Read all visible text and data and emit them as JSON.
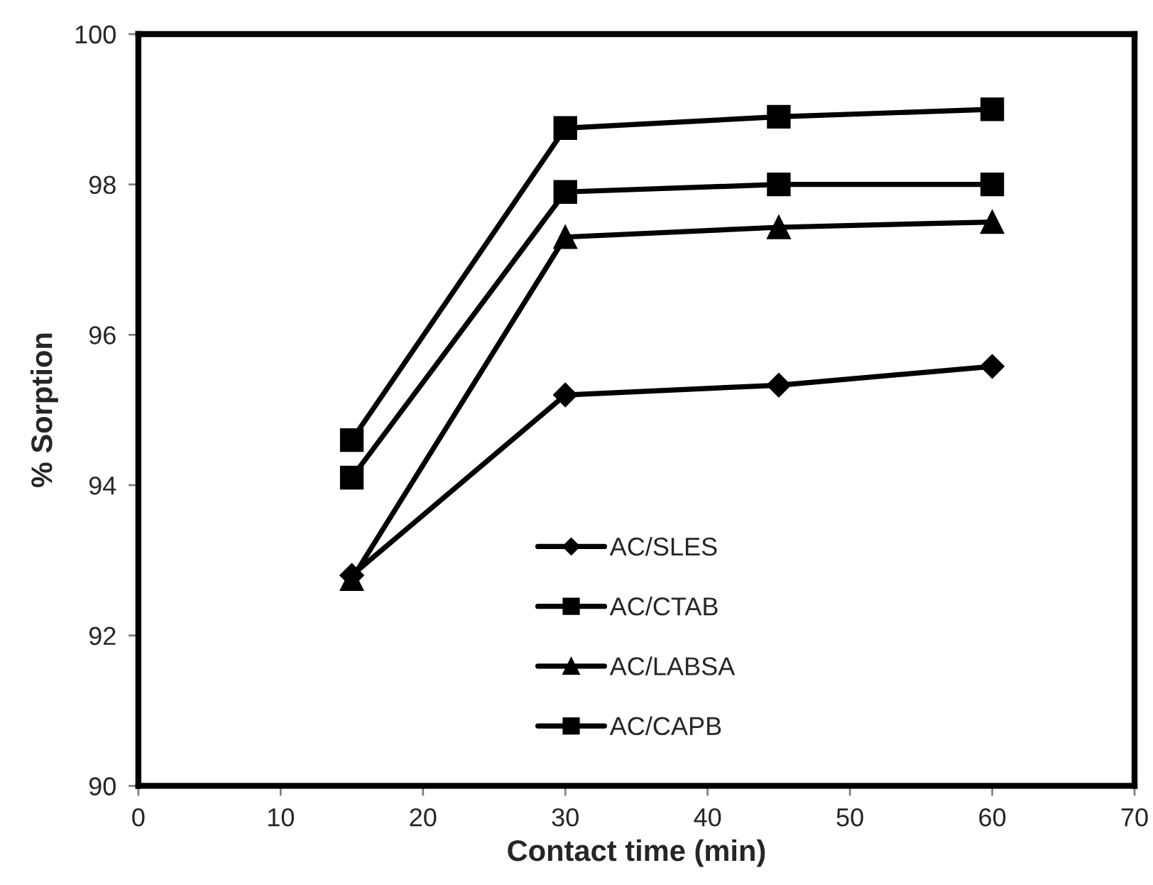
{
  "chart_data": {
    "type": "line",
    "xlabel": "Contact time (min)",
    "ylabel": "% Sorption",
    "x": [
      15,
      30,
      45,
      60
    ],
    "series": [
      {
        "name": "AC/SLES",
        "color": "#000000",
        "marker": "diamond",
        "values": [
          92.8,
          95.2,
          95.33,
          95.58
        ]
      },
      {
        "name": "AC/CTAB",
        "color": "#000000",
        "marker": "square",
        "values": [
          94.6,
          98.75,
          98.9,
          99.0
        ]
      },
      {
        "name": "AC/LABSA",
        "color": "#000000",
        "marker": "triangle",
        "values": [
          92.75,
          97.3,
          97.43,
          97.5
        ]
      },
      {
        "name": "AC/CAPB",
        "color": "#000000",
        "marker": "square",
        "values": [
          94.1,
          97.9,
          98.0,
          98.0
        ]
      }
    ],
    "xlim": [
      0,
      70
    ],
    "xticks": [
      0,
      10,
      20,
      30,
      40,
      50,
      60,
      70
    ],
    "ylim": [
      90,
      100
    ],
    "yticks": [
      90,
      92,
      94,
      96,
      98,
      100
    ],
    "grid": false,
    "legend": "bottom",
    "line_style": "solid"
  }
}
